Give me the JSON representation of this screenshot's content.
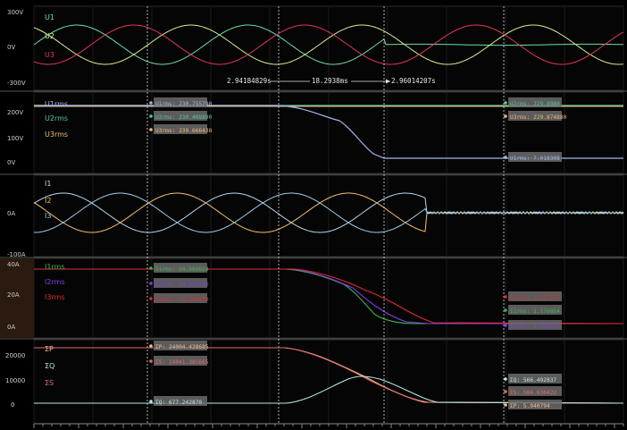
{
  "colors": {
    "u1": "#6cdfa4",
    "u2": "#d7ee8c",
    "u3": "#e2365f",
    "i1": "#b9d8ee",
    "i2": "#f5c06a",
    "i3": "#9ccfe8",
    "i1rms": "#3db24f",
    "i2rms": "#7f3fe6",
    "i3rms": "#e32d2d",
    "p": "#f2bd8d",
    "q": "#b7e9e4",
    "s": "#e56a6a",
    "u1rms": "#a2b6e6",
    "u2rms": "#5ac59c",
    "u3rms": "#f1b978"
  },
  "cursors": {
    "left_time": "2.94184829s",
    "delta": "18.2938ms",
    "right_time": "2.96014207s"
  },
  "panels": [
    {
      "id": "voltage",
      "y_ticks": [
        "300V",
        "0V",
        "-300V"
      ],
      "channels": [
        "U1",
        "U2",
        "U3"
      ]
    },
    {
      "id": "voltage_rms",
      "y_ticks": [
        "200V",
        "100V",
        "0V"
      ],
      "channels": [
        "U1rms",
        "U2rms",
        "U3rms"
      ],
      "readouts_left": [
        {
          "text": "U1rms: 230.755790",
          "ch": "u1rms"
        },
        {
          "text": "U2rms: 230.408890",
          "ch": "u2rms"
        },
        {
          "text": "U3rms: 230.666438",
          "ch": "u3rms"
        }
      ],
      "readouts_right": [
        {
          "text": "U2rms: 229.8980",
          "ch": "u2rms"
        },
        {
          "text": "U3rms: 229.874880",
          "ch": "u3rms"
        },
        {
          "text": "U1rms: 7.018308",
          "ch": "u1rms"
        }
      ]
    },
    {
      "id": "current",
      "y_ticks": [
        "0A",
        "-100A"
      ],
      "channels": [
        "I1",
        "I2",
        "I3"
      ]
    },
    {
      "id": "current_rms",
      "y_ticks": [
        "40A",
        "20A",
        "0A"
      ],
      "channels": [
        "I1rms",
        "I2rms",
        "I3rms"
      ],
      "readouts_left": [
        {
          "text": "I1rms: 34.669824",
          "ch": "i1rms"
        },
        {
          "text": "I2rms: 34.698420",
          "ch": "i2rms"
        },
        {
          "text": "I3rms: 34.544979",
          "ch": "i3rms"
        }
      ],
      "readouts_right": [
        {
          "text": "I3rms: 1.227571",
          "ch": "i3rms"
        },
        {
          "text": "I1rms: 1.176864",
          "ch": "i1rms"
        },
        {
          "text": "I2rms: 1.165117",
          "ch": "i2rms"
        }
      ]
    },
    {
      "id": "power",
      "y_ticks": [
        "20000",
        "10000",
        "0"
      ],
      "channels": [
        "ΣP",
        "ΣQ",
        "ΣS"
      ],
      "readouts_left": [
        {
          "text": "ΣP: 24004.428685",
          "ch": "p"
        },
        {
          "text": "ΣS: 24041.385665",
          "ch": "s"
        },
        {
          "text": "ΣQ: 677.242870",
          "ch": "q"
        }
      ],
      "readouts_right": [
        {
          "text": "ΣQ: 566.492837",
          "ch": "q"
        },
        {
          "text": "ΣS: 566.636422",
          "ch": "s"
        },
        {
          "text": "ΣP: 5.940794",
          "ch": "p"
        }
      ]
    }
  ]
}
